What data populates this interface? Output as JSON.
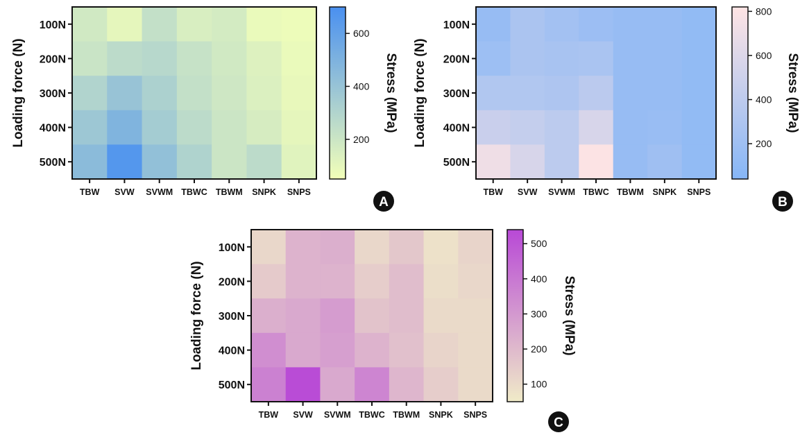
{
  "chart_data": [
    {
      "panel": "A",
      "type": "heatmap",
      "x_categories": [
        "TBW",
        "SVW",
        "SVWM",
        "TBWC",
        "TBWM",
        "SNPK",
        "SNPS"
      ],
      "y_categories": [
        "100N",
        "200N",
        "300N",
        "400N",
        "500N"
      ],
      "ylabel": "Loading force (N)",
      "colorbar_label": "Stress (MPa)",
      "colorbar_range": [
        50,
        700
      ],
      "colorbar_ticks": [
        200,
        400,
        600
      ],
      "colorscale": [
        "#f2ffb8",
        "#4a90f0"
      ],
      "values": [
        [
          180,
          100,
          230,
          150,
          170,
          80,
          70
        ],
        [
          210,
          260,
          280,
          220,
          180,
          130,
          80
        ],
        [
          300,
          400,
          320,
          230,
          190,
          140,
          90
        ],
        [
          380,
          490,
          350,
          260,
          200,
          160,
          100
        ],
        [
          450,
          660,
          420,
          310,
          200,
          260,
          120
        ]
      ]
    },
    {
      "panel": "B",
      "type": "heatmap",
      "x_categories": [
        "TBW",
        "SVW",
        "SVWM",
        "TBWC",
        "TBWM",
        "SNPK",
        "SNPS"
      ],
      "y_categories": [
        "100N",
        "200N",
        "300N",
        "400N",
        "500N"
      ],
      "ylabel": "Loading force (N)",
      "colorbar_label": "Stress (MPa)",
      "colorbar_range": [
        40,
        820
      ],
      "colorbar_ticks": [
        200,
        400,
        600,
        800
      ],
      "colorscale": [
        "#86b6f6",
        "#ffe4e4"
      ],
      "values": [
        [
          150,
          280,
          230,
          180,
          150,
          150,
          120
        ],
        [
          190,
          280,
          260,
          270,
          150,
          150,
          120
        ],
        [
          320,
          320,
          300,
          380,
          150,
          150,
          120
        ],
        [
          470,
          440,
          390,
          560,
          150,
          160,
          120
        ],
        [
          720,
          560,
          390,
          800,
          150,
          200,
          120
        ]
      ]
    },
    {
      "panel": "C",
      "type": "heatmap",
      "x_categories": [
        "TBW",
        "SVW",
        "SVWM",
        "TBWC",
        "TBWM",
        "SNPK",
        "SNPS"
      ],
      "y_categories": [
        "100N",
        "200N",
        "300N",
        "400N",
        "500N"
      ],
      "ylabel": "Loading force (N)",
      "colorbar_label": "Stress (MPa)",
      "colorbar_range": [
        50,
        540
      ],
      "colorbar_ticks": [
        100,
        200,
        300,
        400,
        500
      ],
      "colorscale": [
        "#f0ebc8",
        "#b849d6"
      ],
      "values": [
        [
          110,
          220,
          230,
          110,
          160,
          80,
          120
        ],
        [
          150,
          220,
          220,
          140,
          190,
          90,
          110
        ],
        [
          230,
          250,
          290,
          170,
          190,
          100,
          100
        ],
        [
          330,
          250,
          280,
          220,
          180,
          120,
          100
        ],
        [
          370,
          530,
          250,
          360,
          210,
          140,
          100
        ]
      ]
    }
  ],
  "badges": [
    "A",
    "B",
    "C"
  ]
}
